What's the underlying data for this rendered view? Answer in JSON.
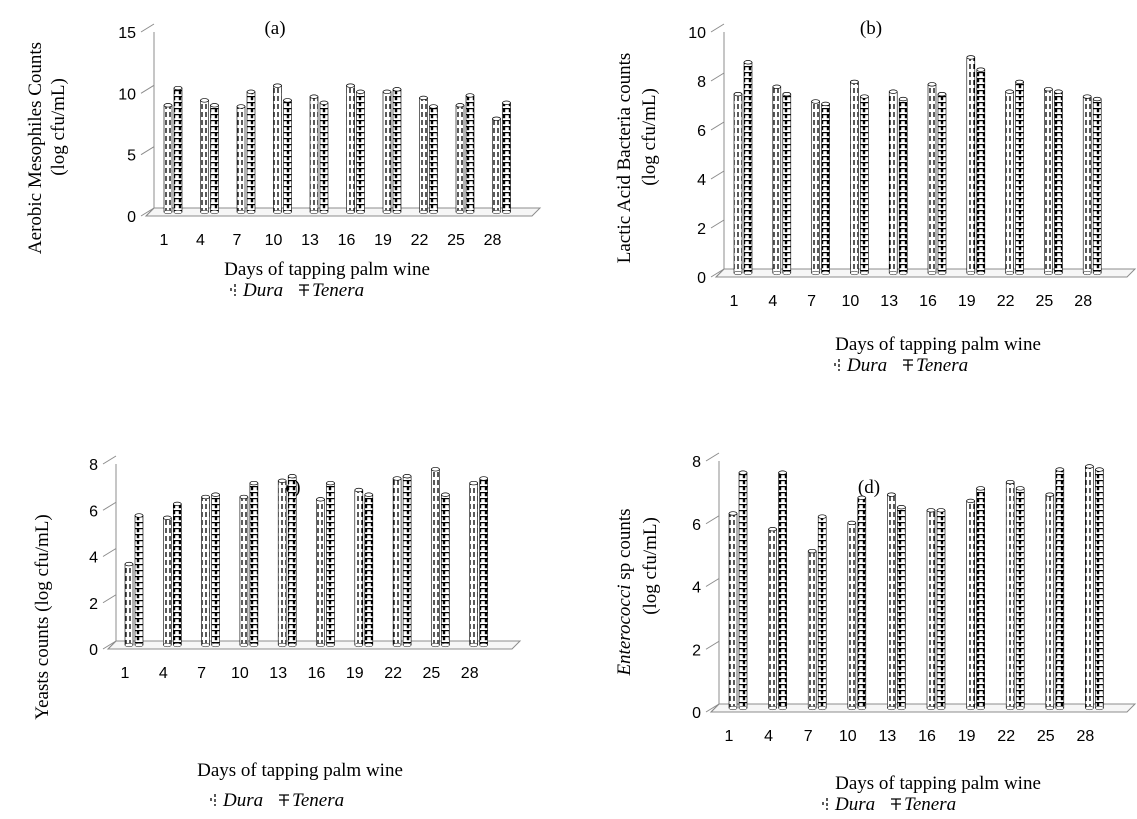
{
  "chart_data": [
    {
      "type": "bar",
      "title": "(a)",
      "xlabel": "Days of tapping palm wine",
      "ylabel": [
        "Aerobic Mesophiles Counts",
        "(log cfu/mL)"
      ],
      "ylabel_italic_prefix": "",
      "categories": [
        "1",
        "4",
        "7",
        "10",
        "13",
        "16",
        "19",
        "22",
        "25",
        "28"
      ],
      "ylim": [
        0,
        15
      ],
      "yticks": [
        "0",
        "5",
        "10",
        "15"
      ],
      "series": [
        {
          "name": "Dura",
          "values": [
            8.7,
            9.1,
            8.6,
            10.3,
            9.4,
            10.3,
            9.8,
            9.3,
            8.7,
            7.6
          ]
        },
        {
          "name": "Tenera",
          "values": [
            10.1,
            8.7,
            9.8,
            9.1,
            8.9,
            9.8,
            10.0,
            8.6,
            9.5,
            8.9
          ]
        }
      ],
      "legend_position": "bottom"
    },
    {
      "type": "bar",
      "title": "(b)",
      "xlabel": "Days of tapping palm wine",
      "ylabel": [
        "Lactic Acid Bacteria counts",
        "(log cfu/mL)"
      ],
      "ylabel_italic_prefix": "",
      "categories": [
        "1",
        "4",
        "7",
        "10",
        "13",
        "16",
        "19",
        "22",
        "25",
        "28"
      ],
      "ylim": [
        0,
        10
      ],
      "yticks": [
        "0",
        "2",
        "4",
        "6",
        "8",
        "10"
      ],
      "series": [
        {
          "name": "Dura",
          "values": [
            7.3,
            7.6,
            7.0,
            7.8,
            7.4,
            7.7,
            8.8,
            7.4,
            7.5,
            7.2
          ]
        },
        {
          "name": "Tenera",
          "values": [
            8.6,
            7.3,
            6.9,
            7.2,
            7.1,
            7.3,
            8.3,
            7.8,
            7.4,
            7.1
          ]
        }
      ],
      "legend_position": "bottom"
    },
    {
      "type": "bar",
      "title": "(c)",
      "xlabel": "Days of tapping palm wine",
      "ylabel": [
        "Yeasts counts  (log cfu/mL)"
      ],
      "ylabel_italic_prefix": "",
      "categories": [
        "1",
        "4",
        "7",
        "10",
        "13",
        "16",
        "19",
        "22",
        "25",
        "28"
      ],
      "ylim": [
        0,
        8
      ],
      "yticks": [
        "0",
        "2",
        "4",
        "6",
        "8"
      ],
      "series": [
        {
          "name": "Dura",
          "values": [
            3.5,
            5.5,
            6.4,
            6.4,
            7.1,
            6.3,
            6.7,
            7.2,
            7.6,
            7.0
          ]
        },
        {
          "name": "Tenera",
          "values": [
            5.6,
            6.1,
            6.5,
            7.0,
            7.3,
            7.0,
            6.5,
            7.3,
            6.5,
            7.2
          ]
        }
      ],
      "legend_position": "bottom"
    },
    {
      "type": "bar",
      "title": "(d)",
      "xlabel": "Days of tapping palm wine",
      "ylabel": [
        " sp counts",
        "(log cfu/mL)"
      ],
      "ylabel_italic_prefix": "Enterococci",
      "categories": [
        "1",
        "4",
        "7",
        "10",
        "13",
        "16",
        "19",
        "22",
        "25",
        "28"
      ],
      "ylim": [
        0,
        8
      ],
      "yticks": [
        "0",
        "2",
        "4",
        "6",
        "8"
      ],
      "series": [
        {
          "name": "Dura",
          "values": [
            6.2,
            5.7,
            5.0,
            5.9,
            6.8,
            6.3,
            6.6,
            7.2,
            6.8,
            7.7
          ]
        },
        {
          "name": "Tenera",
          "values": [
            7.5,
            7.5,
            6.1,
            6.7,
            6.4,
            6.3,
            7.0,
            7.0,
            7.6,
            7.6
          ]
        }
      ],
      "legend_position": "bottom"
    }
  ]
}
